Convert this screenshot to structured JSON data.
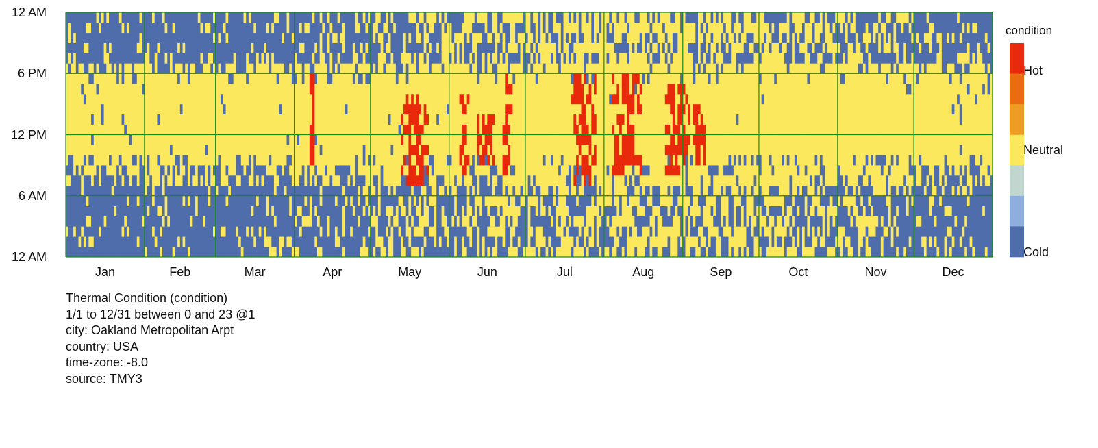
{
  "chart_data": {
    "type": "heatmap",
    "title": "Thermal Condition (condition)",
    "x_dimension": "day of year",
    "y_dimension": "hour of day",
    "y_ticks": [
      "12 AM",
      "6 AM",
      "12 PM",
      "6 PM",
      "12 AM"
    ],
    "y_tick_hours": [
      0,
      6,
      12,
      18,
      24
    ],
    "months": [
      {
        "label": "Jan",
        "days": 31
      },
      {
        "label": "Feb",
        "days": 28
      },
      {
        "label": "Mar",
        "days": 31
      },
      {
        "label": "Apr",
        "days": 30
      },
      {
        "label": "May",
        "days": 31
      },
      {
        "label": "Jun",
        "days": 30
      },
      {
        "label": "Jul",
        "days": 31
      },
      {
        "label": "Aug",
        "days": 31
      },
      {
        "label": "Sep",
        "days": 30
      },
      {
        "label": "Oct",
        "days": 31
      },
      {
        "label": "Nov",
        "days": 30
      },
      {
        "label": "Dec",
        "days": 31
      }
    ],
    "legend": {
      "title": "condition",
      "labels": [
        {
          "text": "Hot",
          "level": 3
        },
        {
          "text": "Neutral",
          "level": 0
        },
        {
          "text": "Cold",
          "level": -3
        }
      ],
      "levels": [
        3,
        2,
        1,
        0,
        -1,
        -2,
        -3
      ],
      "colors": [
        "#e8290b",
        "#ea6c10",
        "#ee9c22",
        "#fbe85c",
        "#c2d6d0",
        "#8fadde",
        "#4f6dab"
      ]
    },
    "cell_colors": {
      "cold": "#4f6dab",
      "neutral": "#fbe85c",
      "hot": "#e8290b"
    },
    "grid_color": "#1a8a1a",
    "cold_weekly_intensity": [
      0.88,
      0.86,
      0.9,
      0.86,
      0.78,
      0.76,
      0.84,
      0.84,
      0.88,
      0.88,
      0.84,
      0.74,
      0.74,
      0.72,
      0.62,
      0.6,
      0.58,
      0.56,
      0.5,
      0.46,
      0.44,
      0.4,
      0.4,
      0.3,
      0.28,
      0.26,
      0.26,
      0.24,
      0.2,
      0.18,
      0.2,
      0.22,
      0.18,
      0.16,
      0.14,
      0.14,
      0.14,
      0.16,
      0.14,
      0.14,
      0.14,
      0.18,
      0.2,
      0.26,
      0.3,
      0.4,
      0.5,
      0.6,
      0.66,
      0.7,
      0.76,
      0.86,
      0.88
    ],
    "hot_episodes": [
      {
        "start_day": 96,
        "end_day": 97,
        "start_hour": 9,
        "end_hour": 17
      },
      {
        "start_day": 132,
        "end_day": 142,
        "start_hour": 7,
        "end_hour": 15
      },
      {
        "start_day": 155,
        "end_day": 158,
        "start_hour": 8,
        "end_hour": 15
      },
      {
        "start_day": 162,
        "end_day": 168,
        "start_hour": 9,
        "end_hour": 13
      },
      {
        "start_day": 172,
        "end_day": 175,
        "start_hour": 8,
        "end_hour": 17
      },
      {
        "start_day": 199,
        "end_day": 208,
        "start_hour": 7,
        "end_hour": 17
      },
      {
        "start_day": 215,
        "end_day": 226,
        "start_hour": 8,
        "end_hour": 17
      },
      {
        "start_day": 236,
        "end_day": 244,
        "start_hour": 8,
        "end_hour": 16
      },
      {
        "start_day": 245,
        "end_day": 251,
        "start_hour": 9,
        "end_hour": 14
      }
    ]
  },
  "meta": {
    "title": "Thermal Condition (condition)",
    "range": "1/1 to 12/31 between 0 and 23 @1",
    "city": "city: Oakland Metropolitan Arpt",
    "country": "country: USA",
    "timezone": "time-zone: -8.0",
    "source": "source: TMY3"
  }
}
